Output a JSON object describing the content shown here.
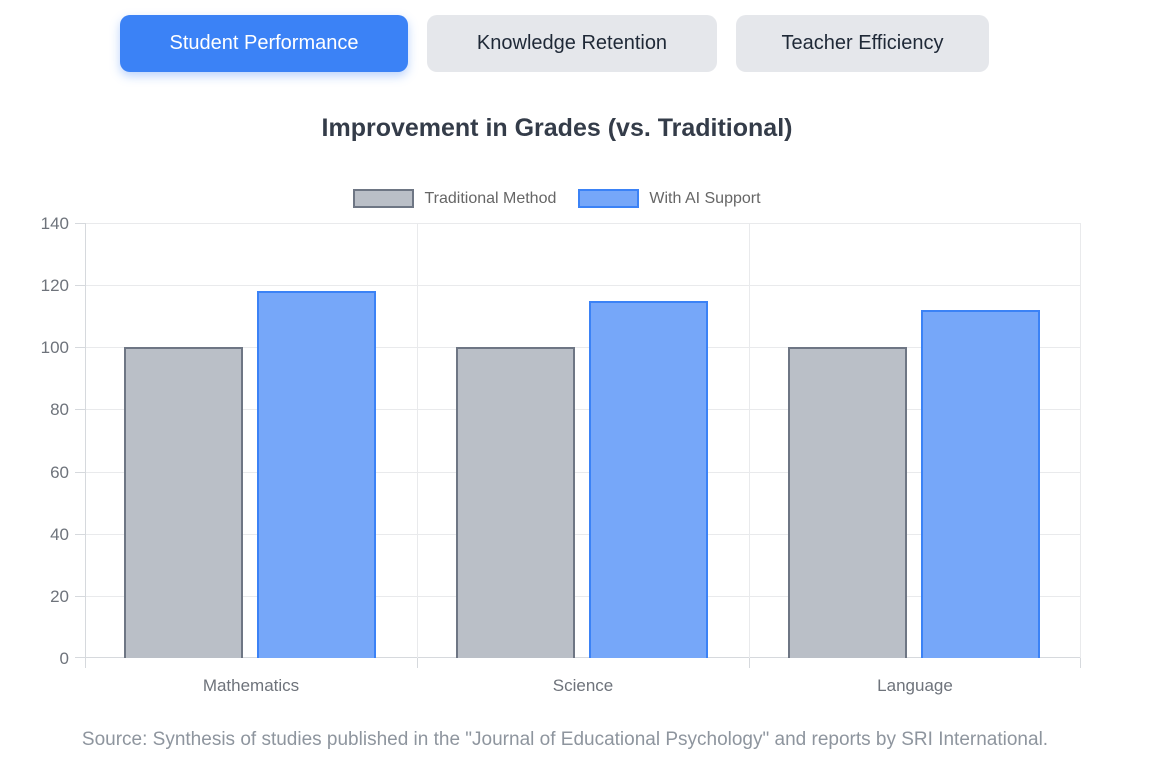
{
  "tabs": [
    {
      "label": "Student Performance",
      "active": true
    },
    {
      "label": "Knowledge Retention",
      "active": false
    },
    {
      "label": "Teacher Efficiency",
      "active": false
    }
  ],
  "source_note": "Source: Synthesis of studies published in the \"Journal of Educational Psychology\" and reports by SRI International.",
  "colors": {
    "active_tab_bg": "#3b82f6",
    "active_tab_text": "#ffffff",
    "inactive_tab_bg": "#e5e7eb",
    "inactive_tab_text": "#1f2937",
    "title_text": "#343c49",
    "legend_text": "#666666",
    "tick_text": "#6e737b",
    "grid_line": "#e9eaec",
    "axis_line": "#d6d9dd",
    "source_text": "#8e959e"
  },
  "chart_data": {
    "type": "bar",
    "title": "Improvement in Grades (vs. Traditional)",
    "categories": [
      "Mathematics",
      "Science",
      "Language"
    ],
    "series": [
      {
        "name": "Traditional Method",
        "values": [
          100,
          100,
          100
        ],
        "fill": "#babfc7",
        "border": "#6e7684"
      },
      {
        "name": "With AI Support",
        "values": [
          118,
          115,
          112
        ],
        "fill": "#76a7f9",
        "border": "#3b82f6"
      }
    ],
    "xlabel": "",
    "ylabel": "",
    "ylim": [
      0,
      140
    ],
    "yticks": [
      0,
      20,
      40,
      60,
      80,
      100,
      120,
      140
    ],
    "legend_position": "top",
    "grid": true
  }
}
